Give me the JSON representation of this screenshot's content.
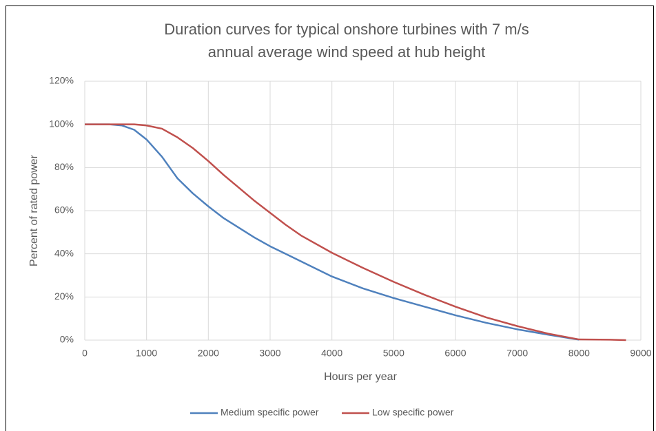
{
  "chart_data": {
    "type": "line",
    "title": "Duration curves for typical onshore turbines with 7 m/s annual average wind speed at hub height",
    "x_label": "Hours per year",
    "y_label": "Percent of rated power",
    "xlim": [
      0,
      9000
    ],
    "xticks": [
      0,
      1000,
      2000,
      3000,
      4000,
      5000,
      6000,
      7000,
      8000,
      9000
    ],
    "ylim": [
      0,
      120
    ],
    "yticks": [
      {
        "value": 0,
        "label": "0%"
      },
      {
        "value": 20,
        "label": "20%"
      },
      {
        "value": 40,
        "label": "40%"
      },
      {
        "value": 60,
        "label": "60%"
      },
      {
        "value": 80,
        "label": "80%"
      },
      {
        "value": 100,
        "label": "100%"
      },
      {
        "value": 120,
        "label": "120%"
      }
    ],
    "grid": true,
    "legend": "bottom",
    "series": [
      {
        "name": "Medium specific power",
        "color": "#4f81bd",
        "x": [
          0,
          200,
          400,
          600,
          800,
          1000,
          1250,
          1500,
          1750,
          2000,
          2250,
          2500,
          2750,
          3000,
          3250,
          3500,
          3750,
          4000,
          4500,
          5000,
          5500,
          6000,
          6500,
          7000,
          7500,
          8000
        ],
        "values": [
          100,
          100,
          100,
          99.5,
          97.5,
          93,
          85,
          75,
          68,
          62,
          56.5,
          52,
          47.5,
          43.5,
          40,
          36.5,
          33,
          29.5,
          24,
          19.5,
          15.5,
          11.5,
          8,
          5,
          2.5,
          0.2
        ]
      },
      {
        "name": "Low specific power",
        "color": "#c0504d",
        "x": [
          0,
          400,
          800,
          1000,
          1250,
          1500,
          1750,
          2000,
          2250,
          2500,
          2750,
          3000,
          3250,
          3500,
          4000,
          4500,
          5000,
          5500,
          6000,
          6500,
          7000,
          7500,
          8000,
          8500,
          8760
        ],
        "values": [
          100,
          100,
          100,
          99.5,
          98,
          94,
          89,
          83,
          76.5,
          70.5,
          64.5,
          59,
          53.5,
          48.5,
          40.5,
          33.5,
          27,
          21,
          15.5,
          10.5,
          6.5,
          3,
          0.3,
          0.2,
          0
        ]
      }
    ]
  }
}
